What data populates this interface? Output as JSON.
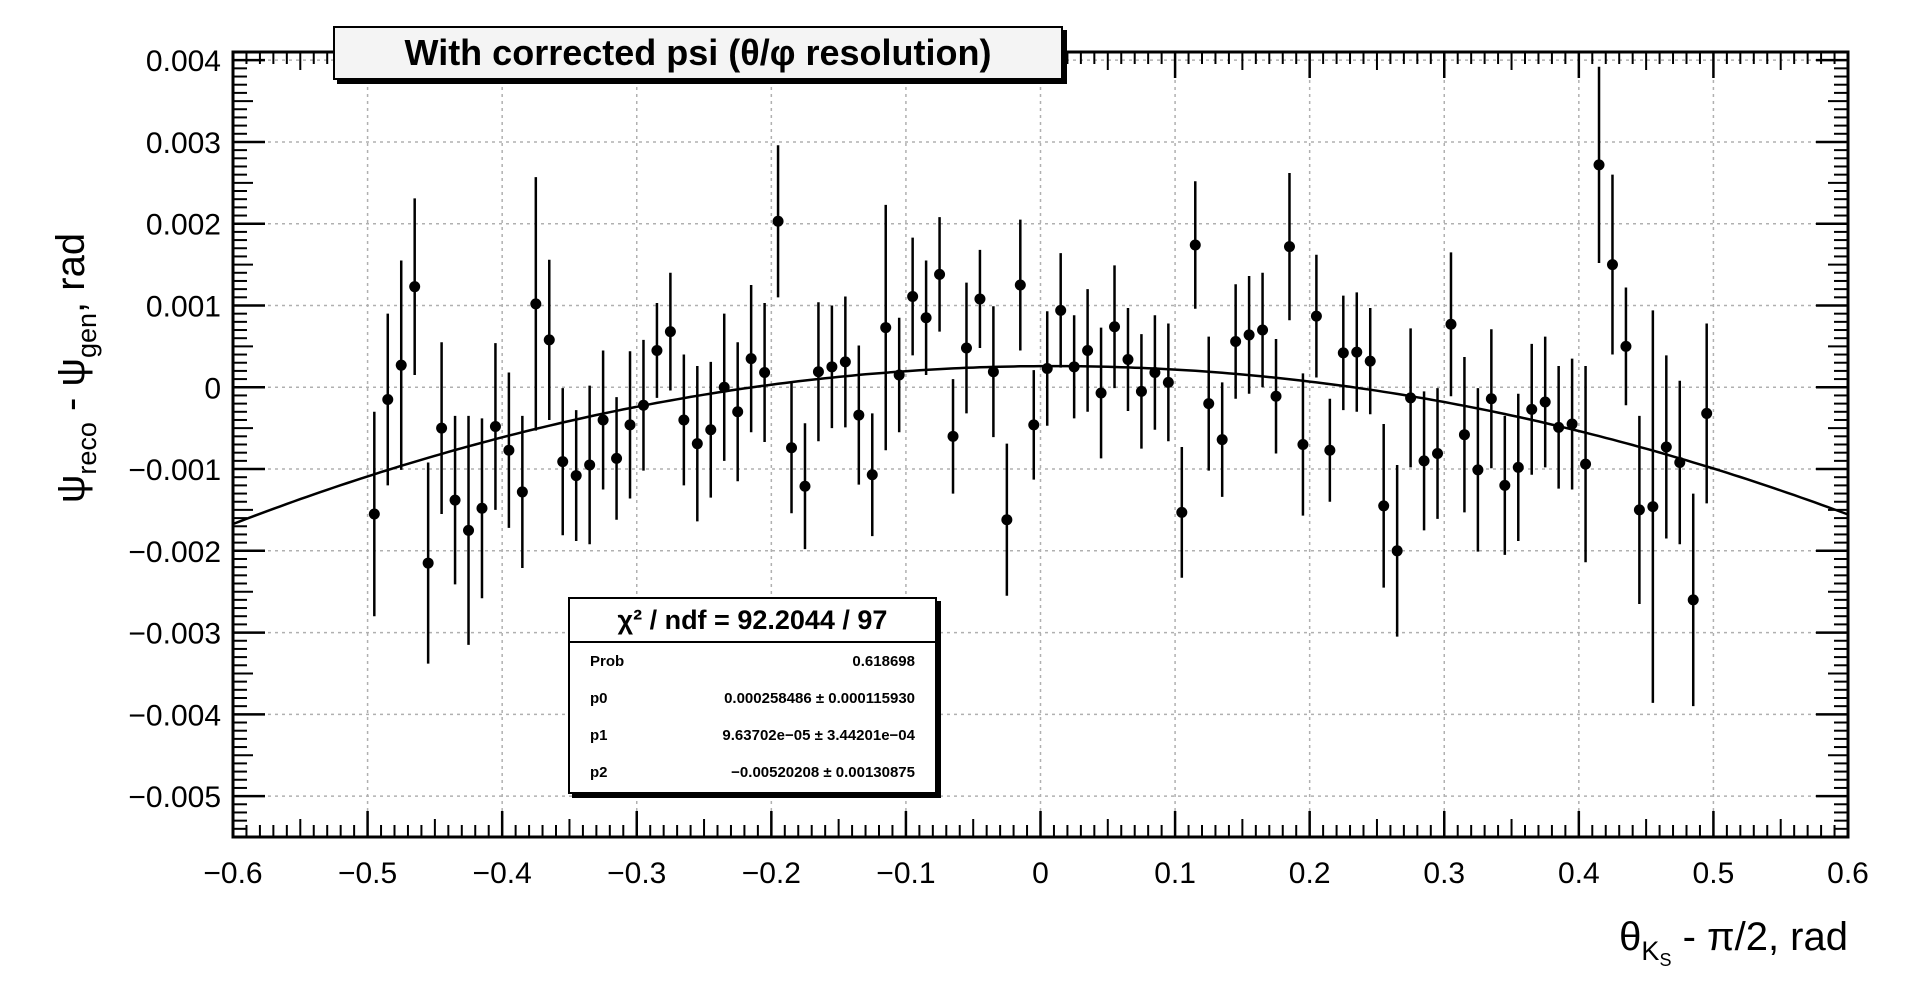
{
  "chart_data": {
    "type": "scatter",
    "title": "With corrected psi (θ/φ resolution)",
    "xlabel": {
      "main": "θ",
      "sub": "K",
      "subsub": "S",
      "rest": " - π/2, rad"
    },
    "ylabel": {
      "a": "ψ",
      "a_sub": "reco",
      "mid": " - ψ",
      "b_sub": "gen",
      "rest": ", rad"
    },
    "xlim": [
      -0.6,
      0.6
    ],
    "ylim": [
      -0.0055,
      0.0041
    ],
    "grid": true,
    "xticks": [
      {
        "v": -0.6,
        "label": "−0.6"
      },
      {
        "v": -0.5,
        "label": "−0.5"
      },
      {
        "v": -0.4,
        "label": "−0.4"
      },
      {
        "v": -0.3,
        "label": "−0.3"
      },
      {
        "v": -0.2,
        "label": "−0.2"
      },
      {
        "v": -0.1,
        "label": "−0.1"
      },
      {
        "v": 0,
        "label": "0"
      },
      {
        "v": 0.1,
        "label": "0.1"
      },
      {
        "v": 0.2,
        "label": "0.2"
      },
      {
        "v": 0.3,
        "label": "0.3"
      },
      {
        "v": 0.4,
        "label": "0.4"
      },
      {
        "v": 0.5,
        "label": "0.5"
      },
      {
        "v": 0.6,
        "label": "0.6"
      }
    ],
    "yticks": [
      {
        "v": 0.004,
        "label": "0.004"
      },
      {
        "v": 0.003,
        "label": "0.003"
      },
      {
        "v": 0.002,
        "label": "0.002"
      },
      {
        "v": 0.001,
        "label": "0.001"
      },
      {
        "v": 0,
        "label": "0"
      },
      {
        "v": -0.001,
        "label": "−0.001"
      },
      {
        "v": -0.002,
        "label": "−0.002"
      },
      {
        "v": -0.003,
        "label": "−0.003"
      },
      {
        "v": -0.004,
        "label": "−0.004"
      },
      {
        "v": -0.005,
        "label": "−0.005"
      }
    ],
    "fit": {
      "p0": 0.000258486,
      "p1": 9.63702e-05,
      "p2": -0.00520208,
      "range": [
        -0.6,
        0.6
      ]
    },
    "points": [
      {
        "x": -0.495,
        "y": -0.00155,
        "err": 0.00125
      },
      {
        "x": -0.485,
        "y": -0.00015,
        "err": 0.00105
      },
      {
        "x": -0.475,
        "y": 0.00027,
        "err": 0.00128
      },
      {
        "x": -0.465,
        "y": 0.00123,
        "err": 0.00108
      },
      {
        "x": -0.455,
        "y": -0.00215,
        "err": 0.00123
      },
      {
        "x": -0.445,
        "y": -0.0005,
        "err": 0.00105
      },
      {
        "x": -0.435,
        "y": -0.00138,
        "err": 0.00103
      },
      {
        "x": -0.425,
        "y": -0.00175,
        "err": 0.0014
      },
      {
        "x": -0.415,
        "y": -0.00148,
        "err": 0.0011
      },
      {
        "x": -0.405,
        "y": -0.00048,
        "err": 0.00102
      },
      {
        "x": -0.395,
        "y": -0.00077,
        "err": 0.00095
      },
      {
        "x": -0.385,
        "y": -0.00128,
        "err": 0.00093
      },
      {
        "x": -0.375,
        "y": 0.00102,
        "err": 0.00155
      },
      {
        "x": -0.365,
        "y": 0.00058,
        "err": 0.00098
      },
      {
        "x": -0.355,
        "y": -0.00091,
        "err": 0.0009
      },
      {
        "x": -0.345,
        "y": -0.00108,
        "err": 0.0008
      },
      {
        "x": -0.335,
        "y": -0.00095,
        "err": 0.00097
      },
      {
        "x": -0.325,
        "y": -0.0004,
        "err": 0.00085
      },
      {
        "x": -0.315,
        "y": -0.00087,
        "err": 0.00075
      },
      {
        "x": -0.305,
        "y": -0.00046,
        "err": 0.0009
      },
      {
        "x": -0.295,
        "y": -0.00022,
        "err": 0.0008
      },
      {
        "x": -0.285,
        "y": 0.00045,
        "err": 0.00058
      },
      {
        "x": -0.275,
        "y": 0.00068,
        "err": 0.00072
      },
      {
        "x": -0.265,
        "y": -0.0004,
        "err": 0.0008
      },
      {
        "x": -0.255,
        "y": -0.00069,
        "err": 0.00095
      },
      {
        "x": -0.245,
        "y": -0.00052,
        "err": 0.00083
      },
      {
        "x": -0.235,
        "y": 0.0,
        "err": 0.0009
      },
      {
        "x": -0.225,
        "y": -0.0003,
        "err": 0.00085
      },
      {
        "x": -0.215,
        "y": 0.00035,
        "err": 0.0009
      },
      {
        "x": -0.205,
        "y": 0.00018,
        "err": 0.00085
      },
      {
        "x": -0.195,
        "y": 0.00203,
        "err": 0.00093
      },
      {
        "x": -0.185,
        "y": -0.00074,
        "err": 0.0008
      },
      {
        "x": -0.175,
        "y": -0.00121,
        "err": 0.00077
      },
      {
        "x": -0.165,
        "y": 0.00019,
        "err": 0.00085
      },
      {
        "x": -0.155,
        "y": 0.00025,
        "err": 0.00075
      },
      {
        "x": -0.145,
        "y": 0.00031,
        "err": 0.0008
      },
      {
        "x": -0.135,
        "y": -0.00034,
        "err": 0.00085
      },
      {
        "x": -0.125,
        "y": -0.00107,
        "err": 0.00075
      },
      {
        "x": -0.115,
        "y": 0.00073,
        "err": 0.0015
      },
      {
        "x": -0.105,
        "y": 0.00015,
        "err": 0.0007
      },
      {
        "x": -0.095,
        "y": 0.00111,
        "err": 0.00072
      },
      {
        "x": -0.085,
        "y": 0.00085,
        "err": 0.0007
      },
      {
        "x": -0.075,
        "y": 0.00138,
        "err": 0.0007
      },
      {
        "x": -0.065,
        "y": -0.0006,
        "err": 0.0007
      },
      {
        "x": -0.055,
        "y": 0.00048,
        "err": 0.0008
      },
      {
        "x": -0.045,
        "y": 0.00108,
        "err": 0.0006
      },
      {
        "x": -0.035,
        "y": 0.00019,
        "err": 0.0008
      },
      {
        "x": -0.025,
        "y": -0.00162,
        "err": 0.00093
      },
      {
        "x": -0.015,
        "y": 0.00125,
        "err": 0.0008
      },
      {
        "x": -0.005,
        "y": -0.00046,
        "err": 0.00067
      },
      {
        "x": 0.005,
        "y": 0.00023,
        "err": 0.0007
      },
      {
        "x": 0.015,
        "y": 0.00094,
        "err": 0.0007
      },
      {
        "x": 0.025,
        "y": 0.00025,
        "err": 0.00063
      },
      {
        "x": 0.035,
        "y": 0.00045,
        "err": 0.00075
      },
      {
        "x": 0.045,
        "y": -7e-05,
        "err": 0.0008
      },
      {
        "x": 0.055,
        "y": 0.00074,
        "err": 0.00075
      },
      {
        "x": 0.065,
        "y": 0.00034,
        "err": 0.00063
      },
      {
        "x": 0.075,
        "y": -5e-05,
        "err": 0.0007
      },
      {
        "x": 0.085,
        "y": 0.00018,
        "err": 0.0007
      },
      {
        "x": 0.095,
        "y": 6e-05,
        "err": 0.00072
      },
      {
        "x": 0.105,
        "y": -0.00153,
        "err": 0.0008
      },
      {
        "x": 0.115,
        "y": 0.00174,
        "err": 0.00078
      },
      {
        "x": 0.125,
        "y": -0.0002,
        "err": 0.00082
      },
      {
        "x": 0.135,
        "y": -0.00064,
        "err": 0.0007
      },
      {
        "x": 0.145,
        "y": 0.00056,
        "err": 0.0007
      },
      {
        "x": 0.155,
        "y": 0.00064,
        "err": 0.00072
      },
      {
        "x": 0.165,
        "y": 0.0007,
        "err": 0.0007
      },
      {
        "x": 0.175,
        "y": -0.00011,
        "err": 0.0007
      },
      {
        "x": 0.185,
        "y": 0.00172,
        "err": 0.0009
      },
      {
        "x": 0.195,
        "y": -0.0007,
        "err": 0.00087
      },
      {
        "x": 0.205,
        "y": 0.00087,
        "err": 0.00075
      },
      {
        "x": 0.215,
        "y": -0.00077,
        "err": 0.00063
      },
      {
        "x": 0.225,
        "y": 0.00042,
        "err": 0.0007
      },
      {
        "x": 0.235,
        "y": 0.00043,
        "err": 0.00073
      },
      {
        "x": 0.245,
        "y": 0.00032,
        "err": 0.00065
      },
      {
        "x": 0.255,
        "y": -0.00145,
        "err": 0.001
      },
      {
        "x": 0.265,
        "y": -0.002,
        "err": 0.00105
      },
      {
        "x": 0.275,
        "y": -0.00013,
        "err": 0.00085
      },
      {
        "x": 0.285,
        "y": -0.0009,
        "err": 0.00085
      },
      {
        "x": 0.295,
        "y": -0.00081,
        "err": 0.0008
      },
      {
        "x": 0.305,
        "y": 0.00077,
        "err": 0.00088
      },
      {
        "x": 0.315,
        "y": -0.00058,
        "err": 0.00095
      },
      {
        "x": 0.325,
        "y": -0.00101,
        "err": 0.001
      },
      {
        "x": 0.335,
        "y": -0.00014,
        "err": 0.00085
      },
      {
        "x": 0.345,
        "y": -0.0012,
        "err": 0.00085
      },
      {
        "x": 0.355,
        "y": -0.00098,
        "err": 0.0009
      },
      {
        "x": 0.365,
        "y": -0.00027,
        "err": 0.0008
      },
      {
        "x": 0.375,
        "y": -0.00018,
        "err": 0.0008
      },
      {
        "x": 0.385,
        "y": -0.00049,
        "err": 0.00075
      },
      {
        "x": 0.395,
        "y": -0.00045,
        "err": 0.0008
      },
      {
        "x": 0.405,
        "y": -0.00094,
        "err": 0.0012
      },
      {
        "x": 0.415,
        "y": 0.00272,
        "err": 0.0012
      },
      {
        "x": 0.425,
        "y": 0.0015,
        "err": 0.0011
      },
      {
        "x": 0.435,
        "y": 0.0005,
        "err": 0.00072
      },
      {
        "x": 0.445,
        "y": -0.0015,
        "err": 0.00115
      },
      {
        "x": 0.455,
        "y": -0.00146,
        "err": 0.0024
      },
      {
        "x": 0.465,
        "y": -0.00073,
        "err": 0.00112
      },
      {
        "x": 0.475,
        "y": -0.00092,
        "err": 0.001
      },
      {
        "x": 0.485,
        "y": -0.0026,
        "err": 0.0013
      },
      {
        "x": 0.495,
        "y": -0.00032,
        "err": 0.0011
      }
    ]
  },
  "stats": {
    "header": "χ² / ndf = 92.2044 / 97",
    "rows": [
      {
        "name": "Prob",
        "value": "0.618698"
      },
      {
        "name": "p0",
        "value": "0.000258486 ± 0.000115930"
      },
      {
        "name": "p1",
        "value": "9.63702e−05 ± 3.44201e−04"
      },
      {
        "name": "p2",
        "value": "−0.00520208 ± 0.00130875"
      }
    ]
  }
}
